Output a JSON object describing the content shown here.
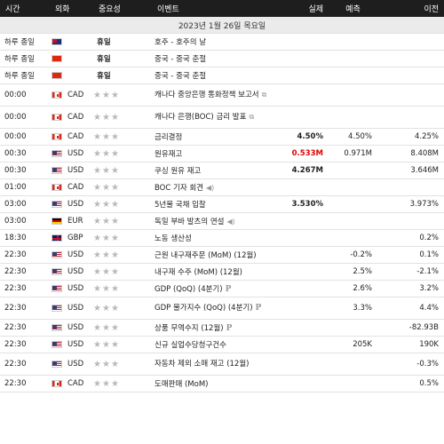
{
  "header": {
    "time": "시간",
    "currency": "외화",
    "importance": "중요성",
    "event": "이벤트",
    "actual": "실제",
    "forecast": "예측",
    "previous": "이전"
  },
  "date_label": "2023년 1월 26일 목요일",
  "holiday_rows": [
    {
      "time": "하루 종일",
      "flag": "au",
      "importance_text": "휴일",
      "event": "호주 - 호주의 날"
    },
    {
      "time": "하루 종일",
      "flag": "cn",
      "importance_text": "휴일",
      "event": "중국 - 중국 춘절"
    },
    {
      "time": "하루 종일",
      "flag": "cn",
      "importance_text": "휴일",
      "event": "중국 - 중국 춘절"
    }
  ],
  "events": [
    {
      "time": "00:00",
      "flag": "ca",
      "currency": "CAD",
      "stars": 0,
      "event": "캐나다 중앙은행 통화정책 보고서",
      "icon": "document-icon",
      "actual": "",
      "forecast": "",
      "previous": "",
      "actual_color": "",
      "wrap": true
    },
    {
      "time": "00:00",
      "flag": "ca",
      "currency": "CAD",
      "stars": 0,
      "event": "캐나다 은행(BOC) 금리 발표",
      "icon": "document-icon",
      "actual": "",
      "forecast": "",
      "previous": "",
      "actual_color": "",
      "wrap": true
    },
    {
      "time": "00:00",
      "flag": "ca",
      "currency": "CAD",
      "stars": 0,
      "event": "금리결정",
      "icon": "",
      "actual": "4.50%",
      "forecast": "4.50%",
      "previous": "4.25%",
      "actual_color": "",
      "wrap": false
    },
    {
      "time": "00:30",
      "flag": "us",
      "currency": "USD",
      "stars": 0,
      "event": "원유재고",
      "icon": "",
      "actual": "0.533M",
      "forecast": "0.971M",
      "previous": "8.408M",
      "actual_color": "#e00000",
      "wrap": false
    },
    {
      "time": "00:30",
      "flag": "us",
      "currency": "USD",
      "stars": 0,
      "event": "쿠싱 원유 재고",
      "icon": "",
      "actual": "4.267M",
      "forecast": "",
      "previous": "3.646M",
      "actual_color": "",
      "wrap": false
    },
    {
      "time": "01:00",
      "flag": "ca",
      "currency": "CAD",
      "stars": 0,
      "event": "BOC 기자 회견",
      "icon": "speaker-icon",
      "actual": "",
      "forecast": "",
      "previous": "",
      "actual_color": "",
      "wrap": false
    },
    {
      "time": "03:00",
      "flag": "us",
      "currency": "USD",
      "stars": 0,
      "event": "5년물 국채 입찰",
      "icon": "",
      "actual": "3.530%",
      "forecast": "",
      "previous": "3.973%",
      "actual_color": "",
      "wrap": false
    },
    {
      "time": "03:00",
      "flag": "de",
      "currency": "EUR",
      "stars": 0,
      "event": "독일 부바 발츠의 연설",
      "icon": "speaker-icon",
      "actual": "",
      "forecast": "",
      "previous": "",
      "actual_color": "",
      "wrap": false
    },
    {
      "time": "18:30",
      "flag": "gb",
      "currency": "GBP",
      "stars": 0,
      "event": "노동 생산성",
      "icon": "",
      "actual": "",
      "forecast": "",
      "previous": "0.2%",
      "actual_color": "",
      "wrap": false
    },
    {
      "time": "22:30",
      "flag": "us",
      "currency": "USD",
      "stars": 0,
      "event": "근원 내구재주문 (MoM) (12월)",
      "icon": "",
      "actual": "",
      "forecast": "-0.2%",
      "previous": "0.1%",
      "actual_color": "",
      "wrap": false
    },
    {
      "time": "22:30",
      "flag": "us",
      "currency": "USD",
      "stars": 0,
      "event": "내구재 수주 (MoM) (12월)",
      "icon": "",
      "actual": "",
      "forecast": "2.5%",
      "previous": "-2.1%",
      "actual_color": "",
      "wrap": false
    },
    {
      "time": "22:30",
      "flag": "us",
      "currency": "USD",
      "stars": 0,
      "event": "GDP (QoQ) (4분기)",
      "icon": "preliminary-icon",
      "actual": "",
      "forecast": "2.6%",
      "previous": "3.2%",
      "actual_color": "",
      "wrap": false
    },
    {
      "time": "22:30",
      "flag": "us",
      "currency": "USD",
      "stars": 0,
      "event": "GDP 물가지수 (QoQ) (4분기)",
      "icon": "preliminary-icon",
      "actual": "",
      "forecast": "3.3%",
      "previous": "4.4%",
      "actual_color": "",
      "wrap": true
    },
    {
      "time": "22:30",
      "flag": "us",
      "currency": "USD",
      "stars": 0,
      "event": "상품 무역수지 (12월)",
      "icon": "preliminary-icon",
      "actual": "",
      "forecast": "",
      "previous": "-82.93B",
      "actual_color": "",
      "wrap": false
    },
    {
      "time": "22:30",
      "flag": "us",
      "currency": "USD",
      "stars": 0,
      "event": "신규 실업수당청구건수",
      "icon": "",
      "actual": "",
      "forecast": "205K",
      "previous": "190K",
      "actual_color": "",
      "wrap": false
    },
    {
      "time": "22:30",
      "flag": "us",
      "currency": "USD",
      "stars": 0,
      "event": "자동차 제외 소매 재고 (12월)",
      "icon": "",
      "actual": "",
      "forecast": "",
      "previous": "-0.3%",
      "actual_color": "",
      "wrap": true
    },
    {
      "time": "22:30",
      "flag": "ca",
      "currency": "CAD",
      "stars": 0,
      "event": "도매판매 (MoM)",
      "icon": "",
      "actual": "",
      "forecast": "",
      "previous": "0.5%",
      "actual_color": "",
      "wrap": false
    }
  ],
  "icons": {
    "document-icon": "⧉",
    "speaker-icon": "◀)",
    "preliminary-icon": "P"
  }
}
